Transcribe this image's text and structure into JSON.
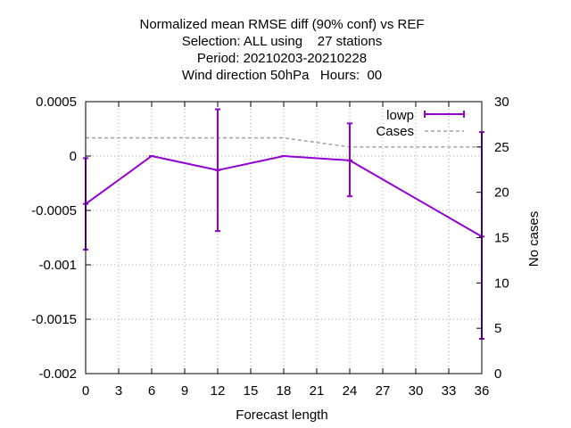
{
  "chart_data": {
    "type": "line",
    "title_lines": [
      "Normalized mean RMSE diff (90% conf) vs REF",
      "Selection: ALL using    27 stations",
      "Period: 20210203-20210228",
      "Wind direction 50hPa   Hours:  00"
    ],
    "xlabel": "Forecast length",
    "ylabel": "",
    "y2label": "No cases",
    "xlim": [
      0,
      36
    ],
    "ylim": [
      -0.002,
      0.0005
    ],
    "y2lim": [
      0,
      30
    ],
    "xticks": [
      0,
      3,
      6,
      9,
      12,
      15,
      18,
      21,
      24,
      27,
      30,
      33,
      36
    ],
    "xtick_labels": [
      "0",
      "3",
      "6",
      "9",
      "12",
      "15",
      "18",
      "21",
      "24",
      "27",
      "30",
      "33",
      "36"
    ],
    "yticks": [
      0.0005,
      0,
      -0.0005,
      -0.001,
      -0.0015,
      -0.002
    ],
    "ytick_labels": [
      "0.0005",
      "0",
      "-0.0005",
      "-0.001",
      "-0.0015",
      "-0.002"
    ],
    "y2ticks": [
      30,
      25,
      20,
      15,
      10,
      5,
      0
    ],
    "y2tick_labels": [
      "30",
      "25",
      "20",
      "15",
      "10",
      "5",
      "0"
    ],
    "grid": true,
    "legend_position": "top-right",
    "series": [
      {
        "name": "lowp",
        "color": "#9400d3",
        "axis": "y1",
        "style": "line-errorbars",
        "x": [
          0,
          6,
          12,
          18,
          24,
          36
        ],
        "y": [
          -0.00044,
          0.0,
          -0.00013,
          0.0,
          -4e-05,
          -0.00074
        ],
        "err_low": [
          -0.00086,
          0.0,
          -0.00069,
          0.0,
          -0.00037,
          -0.00168
        ],
        "err_high": [
          -2e-05,
          0.0,
          0.00043,
          0.0,
          0.0003,
          0.00022
        ]
      },
      {
        "name": "Cases",
        "color": "#a0a0a0",
        "axis": "y2",
        "style": "dashed-line",
        "x": [
          0,
          6,
          12,
          18,
          24,
          36
        ],
        "y": [
          26,
          26,
          26,
          26,
          25,
          25
        ]
      }
    ]
  }
}
